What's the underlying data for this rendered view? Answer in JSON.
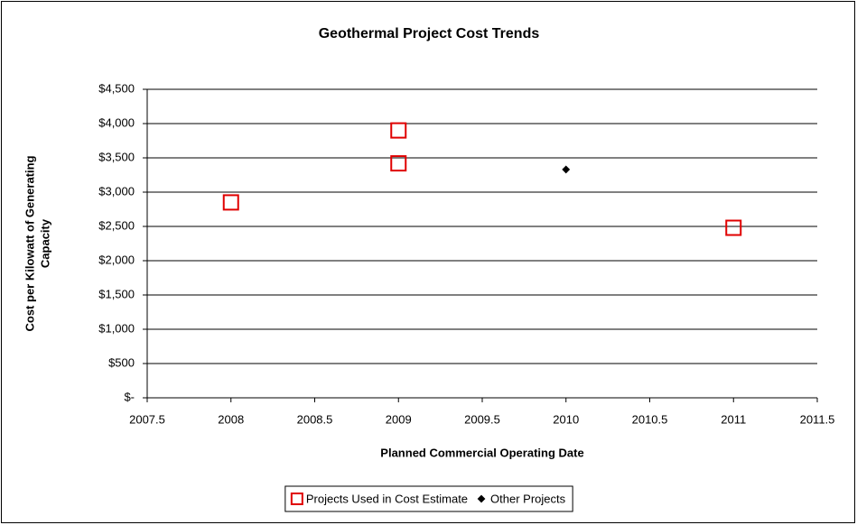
{
  "chart_data": {
    "type": "scatter",
    "title": "Geothermal Project Cost Trends",
    "xlabel": "Planned Commercial Operating Date",
    "ylabel": [
      "Cost per Kilowatt of Generating",
      "Capacity"
    ],
    "xlim": [
      2007.5,
      2011.5
    ],
    "xticks": [
      2007.5,
      2008,
      2008.5,
      2009,
      2009.5,
      2010,
      2010.5,
      2011,
      2011.5
    ],
    "ylim": [
      0,
      4500
    ],
    "yticks": [
      {
        "value": 0,
        "label": "$-"
      },
      {
        "value": 500,
        "label": "$500"
      },
      {
        "value": 1000,
        "label": "$1,000"
      },
      {
        "value": 1500,
        "label": "$1,500"
      },
      {
        "value": 2000,
        "label": "$2,000"
      },
      {
        "value": 2500,
        "label": "$2,500"
      },
      {
        "value": 3000,
        "label": "$3,000"
      },
      {
        "value": 3500,
        "label": "$3,500"
      },
      {
        "value": 4000,
        "label": "$4,000"
      },
      {
        "value": 4500,
        "label": "$4,500"
      }
    ],
    "grid": true,
    "legend": "bottom",
    "series": [
      {
        "name": "Projects Used in Cost Estimate",
        "color": "#e00000",
        "marker": "square",
        "x": [
          2008,
          2009,
          2009,
          2011
        ],
        "values": [
          2850,
          3900,
          3420,
          2480
        ]
      },
      {
        "name": "Other Projects",
        "color": "#000000",
        "marker": "diamond",
        "x": [
          2010
        ],
        "values": [
          3330
        ]
      }
    ]
  }
}
